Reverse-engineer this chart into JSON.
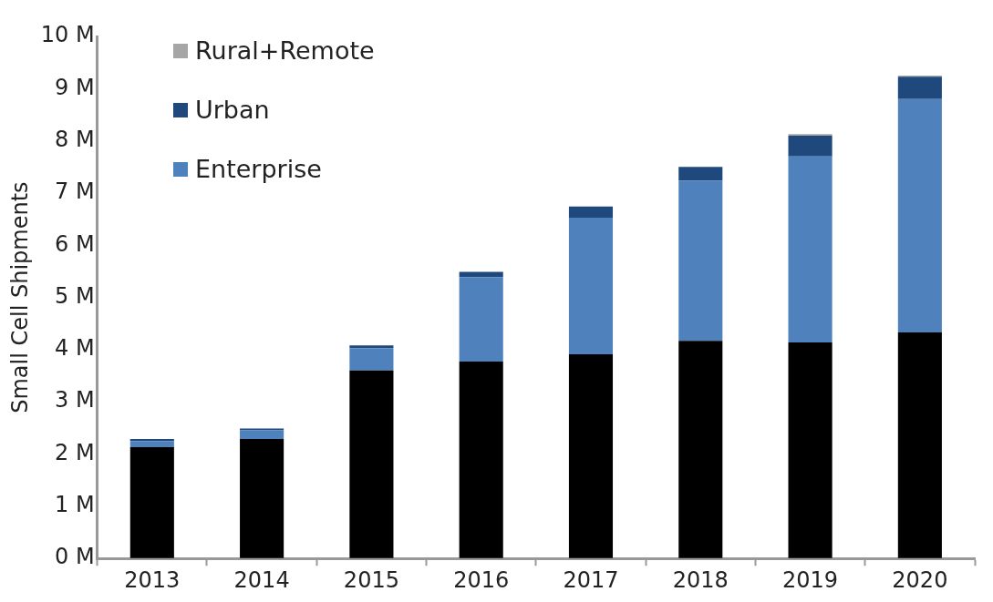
{
  "chart_data": {
    "type": "bar",
    "stacked": true,
    "ylabel": "Small Cell Shipments",
    "categories": [
      "2013",
      "2014",
      "2015",
      "2016",
      "2017",
      "2018",
      "2019",
      "2020"
    ],
    "series": [
      {
        "color": "#000000",
        "values": [
          2.13,
          2.29,
          3.6,
          3.77,
          3.91,
          4.17,
          4.14,
          4.33
        ]
      },
      {
        "name": "Enterprise",
        "color": "#4f81bd",
        "values": [
          0.12,
          0.17,
          0.43,
          1.62,
          2.62,
          3.07,
          3.56,
          4.47
        ]
      },
      {
        "name": "Urban",
        "color": "#1f497d",
        "values": [
          0.04,
          0.03,
          0.05,
          0.1,
          0.21,
          0.26,
          0.4,
          0.43
        ]
      },
      {
        "name": "Rural+Remote",
        "color": "#a6a6a6",
        "values": [
          null,
          null,
          null,
          null,
          null,
          null,
          0.03,
          0.02
        ]
      }
    ],
    "ylim": [
      0,
      10
    ],
    "yticks": [
      {
        "value": 0,
        "label": "0 M"
      },
      {
        "value": 1,
        "label": "1 M"
      },
      {
        "value": 2,
        "label": "2 M"
      },
      {
        "value": 3,
        "label": "3 M"
      },
      {
        "value": 4,
        "label": "4 M"
      },
      {
        "value": 5,
        "label": "5 M"
      },
      {
        "value": 6,
        "label": "6 M"
      },
      {
        "value": 7,
        "label": "7 M"
      },
      {
        "value": 8,
        "label": "8 M"
      },
      {
        "value": 9,
        "label": "9 M"
      },
      {
        "value": 10,
        "label": "10 M"
      }
    ],
    "grid": false,
    "legend": "top left"
  }
}
